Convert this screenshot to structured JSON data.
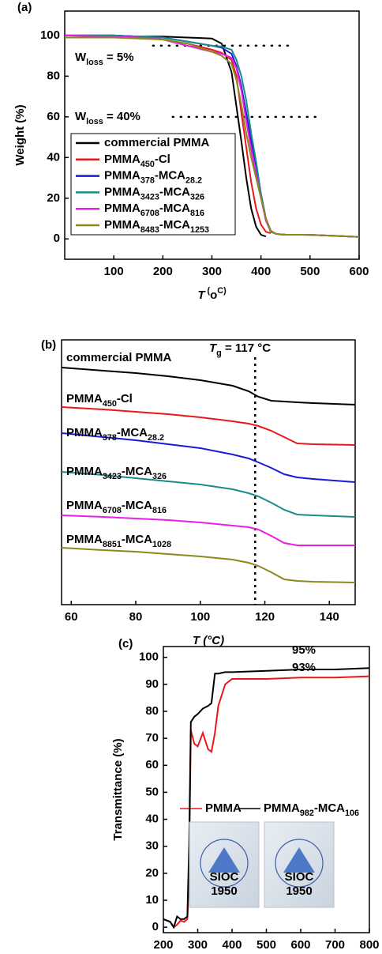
{
  "chart_data": [
    {
      "type": "line",
      "panel_label": "(a)",
      "y_label": "Weight (%)",
      "x_label": [
        "T",
        " (",
        "o",
        "C)"
      ],
      "xlim": [
        0,
        600
      ],
      "xticks": [
        100,
        200,
        300,
        400,
        500,
        600
      ],
      "ylim": [
        -10,
        112
      ],
      "yticks": [
        0,
        20,
        40,
        60,
        80,
        100
      ],
      "hlines": [
        95,
        60
      ],
      "annotations": [
        [
          "W",
          "loss",
          " = 5%"
        ],
        [
          "W",
          "loss",
          " = 40%"
        ]
      ],
      "x": [
        0,
        100,
        150,
        200,
        250,
        300,
        320,
        340,
        350,
        360,
        370,
        380,
        390,
        400,
        410,
        420,
        430,
        440,
        450,
        500,
        550,
        600
      ],
      "series": [
        {
          "name": [
            "commercial PMMA"
          ],
          "color": "#000000",
          "values": [
            100,
            100,
            99.5,
            99.5,
            99,
            98.5,
            96,
            82,
            65,
            48,
            30,
            15,
            6,
            2,
            1.2,
            null,
            null,
            null,
            null,
            null,
            null,
            null
          ]
        },
        {
          "name": [
            "PMMA",
            "450",
            "-Cl"
          ],
          "color": "#e8191b",
          "values": [
            100,
            99.5,
            99,
            98,
            96,
            93,
            91.5,
            88,
            80,
            62,
            45,
            28,
            15,
            7,
            3.5,
            2.8,
            null,
            null,
            null,
            null,
            null,
            null
          ]
        },
        {
          "name": [
            "PMMA",
            "378",
            "-MCA",
            "28.2"
          ],
          "color": "#1b1bd6",
          "values": [
            100,
            100,
            99.5,
            99,
            97,
            95,
            94,
            91,
            85,
            75,
            62,
            48,
            36,
            22,
            10,
            4,
            2.5,
            2.2,
            2.1,
            2,
            1.5,
            1
          ]
        },
        {
          "name": [
            "PMMA",
            "3423",
            "-MCA",
            "326"
          ],
          "color": "#1a8a8a",
          "values": [
            100,
            100,
            99.5,
            99,
            97,
            95,
            94.5,
            93,
            88,
            80,
            68,
            52,
            38,
            22,
            9,
            3.5,
            2.5,
            2.2,
            2.1,
            2,
            1.5,
            1
          ]
        },
        {
          "name": [
            "PMMA",
            "6708",
            "-MCA",
            "816"
          ],
          "color": "#e61ee6",
          "values": [
            100,
            99.5,
            99,
            98,
            95,
            92,
            91,
            89,
            84,
            73,
            58,
            44,
            32,
            20,
            9,
            4,
            2.5,
            2.2,
            2.1,
            2,
            1.5,
            1
          ]
        },
        {
          "name": [
            "PMMA",
            "8483",
            "-MCA",
            "1253"
          ],
          "color": "#8a8a1a",
          "values": [
            99,
            99,
            98.5,
            98,
            96,
            92,
            90,
            86,
            78,
            66,
            52,
            40,
            30,
            20,
            10,
            4,
            2.5,
            2.2,
            2.1,
            2,
            1.5,
            1
          ]
        }
      ]
    },
    {
      "type": "line",
      "panel_label": "(b)",
      "x_label": [
        "T (°C)"
      ],
      "xlim": [
        57,
        148
      ],
      "xticks": [
        60,
        80,
        100,
        120,
        140
      ],
      "ylim": [
        0,
        335
      ],
      "vline": 117,
      "annotations": [
        [
          "T",
          "g",
          " = 117 °C"
        ]
      ],
      "x": [
        57,
        70,
        80,
        90,
        100,
        110,
        115,
        118,
        122,
        126,
        130,
        135,
        148
      ],
      "series": [
        {
          "name": [
            "commercial PMMA"
          ],
          "color": "#000000",
          "values": [
            300,
            296,
            293,
            289,
            284,
            277,
            270,
            263,
            258,
            257,
            256,
            255,
            253
          ]
        },
        {
          "name": [
            "PMMA",
            "450",
            "-Cl"
          ],
          "color": "#e8191b",
          "values": [
            250,
            247,
            244,
            241,
            237,
            232,
            229,
            226,
            220,
            212,
            204,
            203,
            202
          ]
        },
        {
          "name": [
            "PMMA",
            "378",
            "-MCA",
            "28.2"
          ],
          "color": "#1b1bd6",
          "values": [
            217,
            212,
            208,
            203,
            198,
            190,
            185,
            180,
            173,
            165,
            161,
            159,
            155
          ]
        },
        {
          "name": [
            "PMMA",
            "3423",
            "-MCA",
            "326"
          ],
          "color": "#1a8a8a",
          "values": [
            168,
            164,
            160,
            156,
            152,
            146,
            141,
            137,
            129,
            120,
            114,
            113,
            111
          ]
        },
        {
          "name": [
            "PMMA",
            "6708",
            "-MCA",
            "816"
          ],
          "color": "#e61ee6",
          "values": [
            113,
            111,
            109,
            107,
            104,
            100,
            98,
            95,
            87,
            78,
            75,
            75,
            75
          ]
        },
        {
          "name": [
            "PMMA",
            "8851",
            "-MCA",
            "1028"
          ],
          "color": "#8a8a1a",
          "values": [
            72,
            69,
            67,
            64,
            61,
            57,
            53,
            49,
            41,
            32,
            30,
            29,
            28
          ]
        }
      ]
    },
    {
      "type": "line",
      "panel_label": "(c)",
      "y_label": "Transmittance (%)",
      "xlim": [
        200,
        800
      ],
      "xticks": [
        200,
        300,
        400,
        500,
        600,
        700,
        800
      ],
      "ylim": [
        -2,
        104
      ],
      "yticks": [
        0,
        10,
        20,
        30,
        40,
        50,
        60,
        70,
        80,
        90,
        100
      ],
      "annotations": [
        [
          "95%"
        ],
        [
          "93%"
        ]
      ],
      "photo_texts": [
        "SIOC",
        "1950"
      ],
      "x": [
        200,
        220,
        230,
        240,
        250,
        260,
        270,
        275,
        280,
        290,
        300,
        315,
        330,
        340,
        350,
        360,
        380,
        400,
        500,
        600,
        700,
        800
      ],
      "series": [
        {
          "name": [
            "PMMA"
          ],
          "color": "#e8191b",
          "values": [
            3,
            2,
            0,
            1,
            2.5,
            2,
            3,
            20,
            73,
            68,
            67,
            72,
            66,
            65,
            72,
            82,
            90,
            92,
            92,
            92.5,
            92.5,
            93
          ]
        },
        {
          "name": [
            "PMMA",
            "982",
            "-MCA",
            "106"
          ],
          "color": "#000000",
          "values": [
            3,
            2,
            0,
            4,
            3,
            3,
            4,
            30,
            76,
            78,
            79,
            81,
            82,
            83,
            94,
            94,
            94.5,
            94.5,
            95,
            95.5,
            95.5,
            96
          ]
        }
      ]
    }
  ]
}
